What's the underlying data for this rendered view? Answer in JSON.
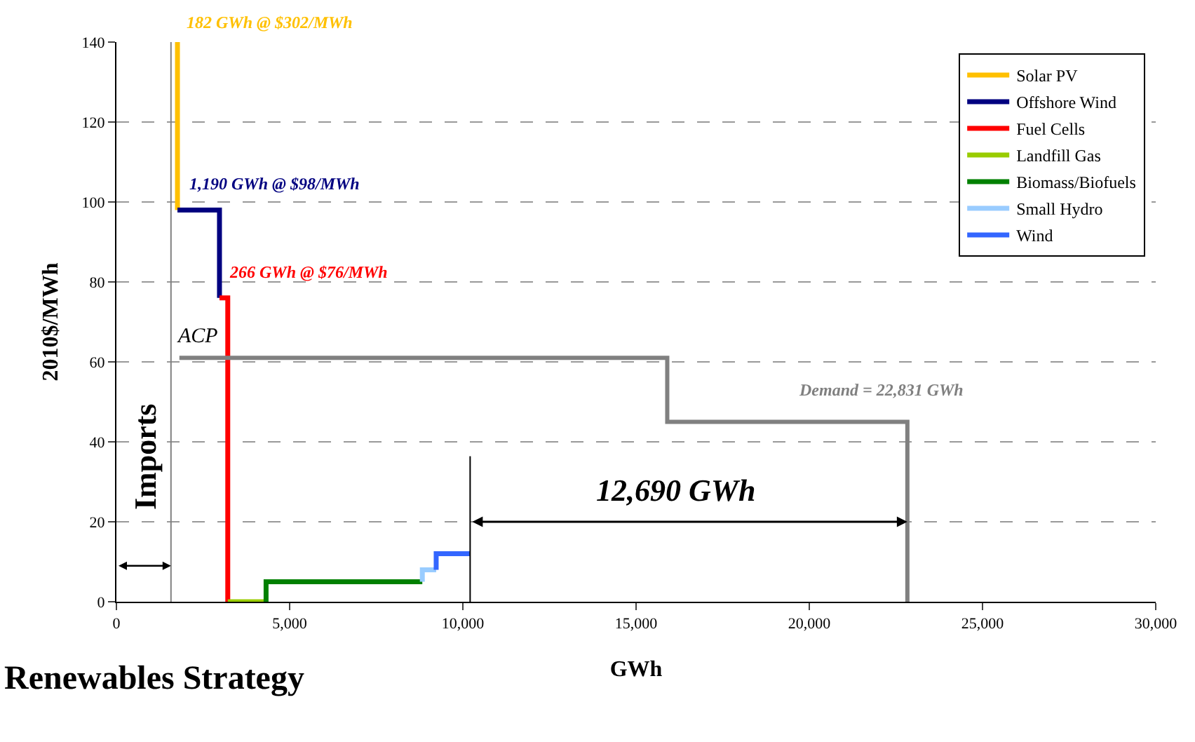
{
  "chart_data": {
    "type": "line",
    "xlabel": "GWh",
    "ylabel": "2010$/MWh",
    "xlim": [
      0,
      30000
    ],
    "xticks": [
      0,
      {
        "value": 5000,
        "label": "5,000"
      },
      {
        "value": 10000,
        "label": "10,000"
      },
      {
        "value": 15000,
        "label": "15,000"
      },
      {
        "value": 20000,
        "label": "20,000"
      },
      {
        "value": 25000,
        "label": "25,000"
      },
      {
        "value": 30000,
        "label": "30,000"
      }
    ],
    "ylim": [
      0,
      140
    ],
    "yticks": [
      0,
      20,
      40,
      60,
      80,
      100,
      120,
      140
    ],
    "grid": "y",
    "legend": "top right",
    "marker": "none",
    "line_style": "solid",
    "series": [
      {
        "name": "Solar PV",
        "color": "#ffc000",
        "x": [
          1762,
          1762
        ],
        "values": [
          140,
          98
        ]
      },
      {
        "name": "Offshore Wind",
        "color": "#000080",
        "x": [
          1762,
          2975,
          2975
        ],
        "values": [
          98,
          98,
          76
        ]
      },
      {
        "name": "Fuel Cells",
        "color": "#ff0000",
        "x": [
          2975,
          3214,
          3214
        ],
        "values": [
          76,
          76,
          0
        ]
      },
      {
        "name": "Landfill Gas",
        "color": "#99cc00",
        "x": [
          3214,
          4320
        ],
        "values": [
          0,
          0
        ]
      },
      {
        "name": "Biomass/Biofuels",
        "color": "#008000",
        "x": [
          4320,
          4320,
          8830
        ],
        "values": [
          0,
          5,
          5
        ]
      },
      {
        "name": "Small Hydro",
        "color": "#99ccff",
        "x": [
          8830,
          8830,
          9230
        ],
        "values": [
          5,
          8,
          8
        ]
      },
      {
        "name": "Wind",
        "color": "#3366ff",
        "x": [
          9230,
          9230,
          10210
        ],
        "values": [
          8,
          12,
          12
        ]
      },
      {
        "color": "#808080",
        "x": [
          1817,
          15900,
          15900,
          22831,
          22831
        ],
        "values": [
          61,
          61,
          45,
          45,
          0
        ]
      }
    ],
    "ref_lines": [
      {
        "axis": "x",
        "value": 1575,
        "label": "Imports",
        "color": "#808080"
      },
      {
        "axis": "x",
        "value": 10210,
        "label": null,
        "color": "#000000"
      }
    ],
    "annotations": [
      "182 GWh @ $302/MWh",
      "1,190 GWh @ $98/MWh",
      "266 GWh @ $76/MWh",
      "ACP",
      "Demand = 22,831 GWh",
      "12,690 GWh",
      "Renewables Strategy"
    ]
  }
}
